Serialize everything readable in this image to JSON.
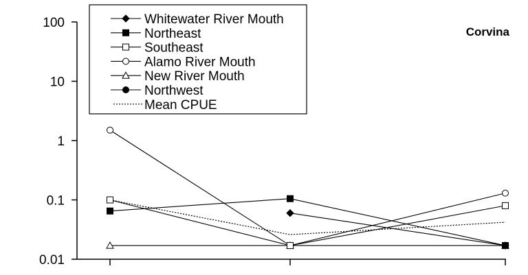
{
  "chart_data": {
    "type": "line",
    "title": "",
    "xlabel": "",
    "ylabel": "",
    "annotation": "Corvina",
    "y_scale": "log",
    "ylim": [
      0.01,
      100
    ],
    "y_ticks": [
      {
        "value": 100,
        "label": "100"
      },
      {
        "value": 10,
        "label": "10"
      },
      {
        "value": 1,
        "label": "1"
      },
      {
        "value": 0.1,
        "label": "0.1"
      },
      {
        "value": 0.01,
        "label": "0.01"
      }
    ],
    "x": [
      1,
      2,
      3
    ],
    "x_tick_labels": [
      "",
      "",
      ""
    ],
    "grid": false,
    "legend_position": "top-left",
    "series": [
      {
        "name": "Whitewater River Mouth",
        "marker": "diamond-filled",
        "line": "solid",
        "values": [
          null,
          0.06,
          0.017
        ]
      },
      {
        "name": "Northeast",
        "marker": "square-filled",
        "line": "solid",
        "values": [
          0.065,
          0.105,
          0.017
        ]
      },
      {
        "name": "Southeast",
        "marker": "square-open",
        "line": "solid",
        "values": [
          0.1,
          0.017,
          0.08
        ]
      },
      {
        "name": "Alamo River Mouth",
        "marker": "circle-open",
        "line": "solid",
        "values": [
          1.5,
          0.017,
          0.13
        ]
      },
      {
        "name": "New River Mouth",
        "marker": "triangle-open",
        "line": "solid",
        "values": [
          0.017,
          0.017,
          0.017
        ]
      },
      {
        "name": "Northwest",
        "marker": "circle-filled",
        "line": "solid",
        "values": [
          null,
          null,
          null
        ]
      },
      {
        "name": "Mean CPUE",
        "marker": "none",
        "line": "dotted",
        "values": [
          0.1,
          0.026,
          0.042
        ]
      }
    ]
  }
}
